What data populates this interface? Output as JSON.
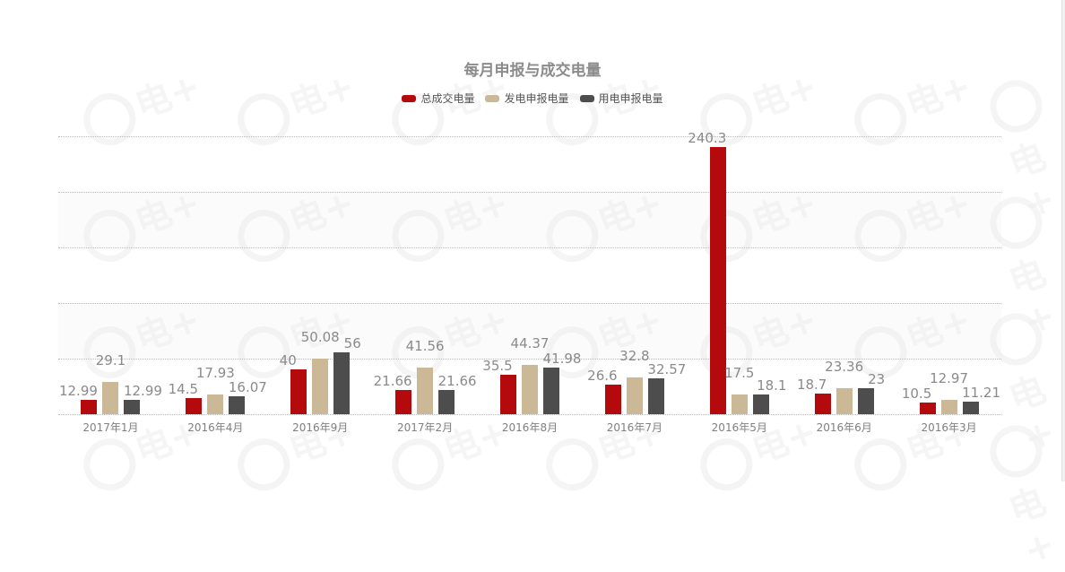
{
  "chart_data": {
    "type": "bar",
    "title": "每月申报与成交电量",
    "xlabel": "",
    "ylabel": "",
    "ylim": [
      0,
      250
    ],
    "grid": true,
    "legend_position": "top",
    "categories": [
      "2017年1月",
      "2016年4月",
      "2016年9月",
      "2017年2月",
      "2016年8月",
      "2016年7月",
      "2016年5月",
      "2016年6月",
      "2016年3月"
    ],
    "series": [
      {
        "name": "总成交电量",
        "color": "#b50a0d",
        "values": [
          12.99,
          14.5,
          40,
          21.66,
          35.5,
          26.6,
          240.3,
          18.7,
          10.5
        ]
      },
      {
        "name": "发电申报电量",
        "color": "#cbb896",
        "values": [
          29.1,
          17.93,
          50.08,
          41.56,
          44.37,
          32.8,
          17.5,
          23.36,
          12.97
        ]
      },
      {
        "name": "用电申报电量",
        "color": "#4d4d4d",
        "values": [
          12.99,
          16.07,
          56,
          21.66,
          41.98,
          32.57,
          18.1,
          23,
          11.21
        ]
      }
    ],
    "value_labels": [
      [
        "12.99",
        "29.1",
        "12.99"
      ],
      [
        "14.5",
        "17.93",
        "16.07"
      ],
      [
        "40",
        "50.08",
        "56"
      ],
      [
        "21.66",
        "41.56",
        "21.66"
      ],
      [
        "35.5",
        "44.37",
        "41.98"
      ],
      [
        "26.6",
        "32.8",
        "32.57"
      ],
      [
        "240.3",
        "17.5",
        "18.1"
      ],
      [
        "18.7",
        "23.36",
        "23"
      ],
      [
        "10.5",
        "12.97",
        "11.21"
      ]
    ]
  },
  "legend": [
    {
      "label": "总成交电量",
      "color": "#b50a0d"
    },
    {
      "label": "发电申报电量",
      "color": "#cbb896"
    },
    {
      "label": "用电申报电量",
      "color": "#4d4d4d"
    }
  ],
  "watermark": {
    "text": "电+"
  }
}
